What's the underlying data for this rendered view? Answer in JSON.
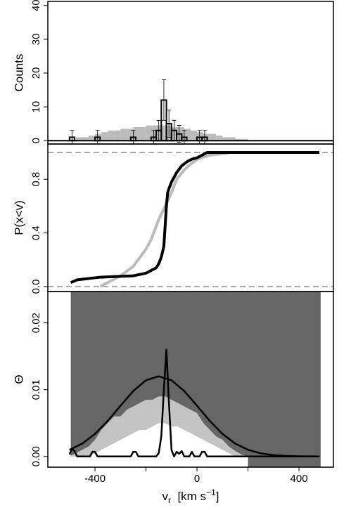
{
  "chart_data": [
    {
      "type": "histogram",
      "ylabel": "Counts",
      "xlim": [
        -585,
        535
      ],
      "ylim": [
        -1,
        41.2
      ],
      "yticks": [
        0,
        10,
        20,
        30,
        40
      ],
      "hlines": [
        0
      ],
      "hline_color": "#000000",
      "hline_dash": false,
      "series": [
        {
          "color": "#bbbbbb",
          "fill": true,
          "bins": [
            -500,
            -475,
            -450,
            -425,
            -400,
            -375,
            -350,
            -325,
            -300,
            -275,
            -250,
            -225,
            -200,
            -175,
            -150,
            -125,
            -100,
            -75,
            -50,
            -25,
            0,
            25,
            50,
            75,
            100,
            125,
            150,
            175,
            200
          ],
          "values": [
            0.5,
            1,
            1,
            1.5,
            2,
            2.5,
            3,
            3,
            3.5,
            3.5,
            4,
            4,
            4.5,
            4.5,
            4.5,
            4.5,
            4,
            4,
            3.5,
            3,
            2.5,
            2,
            2,
            1.5,
            1,
            1,
            0.5,
            0.5
          ]
        },
        {
          "color": "#000000",
          "fill": false,
          "bins": [
            -500,
            -480,
            -460,
            -440,
            -420,
            -400,
            -380,
            -360,
            -340,
            -320,
            -300,
            -280,
            -260,
            -240,
            -220,
            -200,
            -180,
            -160,
            -140,
            -120,
            -100,
            -80,
            -60,
            -40,
            -20,
            0,
            20,
            40,
            60
          ],
          "values": [
            1,
            0,
            0,
            0,
            0,
            1,
            0,
            0,
            0,
            0,
            0,
            0,
            1,
            0,
            0,
            0,
            1,
            3,
            12,
            5,
            3,
            2,
            1,
            0,
            0,
            1,
            1,
            0
          ],
          "errors": [
            2,
            null,
            null,
            null,
            null,
            2,
            null,
            null,
            null,
            null,
            null,
            null,
            2,
            null,
            null,
            null,
            2,
            3,
            6,
            4,
            3,
            2.5,
            2,
            null,
            null,
            2,
            2,
            null
          ]
        }
      ]
    },
    {
      "type": "line",
      "ylabel": "P(x<v)",
      "xlim": [
        -585,
        535
      ],
      "ylim": [
        -0.037,
        1.063
      ],
      "yticks": [
        {
          "value": 0,
          "label": "0.0"
        },
        {
          "value": 0.4,
          "label": "0.4"
        },
        {
          "value": 0.8,
          "label": "0.8"
        }
      ],
      "hlines": [
        0,
        1
      ],
      "hline_color": "#aaaaaa",
      "hline_dash": true,
      "series": [
        {
          "color": "#bbbbbb",
          "width": 4,
          "x": [
            -380,
            -350,
            -300,
            -250,
            -200,
            -180,
            -150,
            -120,
            -100,
            -80,
            -50,
            -20,
            0,
            50,
            100,
            130
          ],
          "values": [
            0,
            0.03,
            0.08,
            0.15,
            0.28,
            0.35,
            0.5,
            0.62,
            0.7,
            0.8,
            0.87,
            0.92,
            0.95,
            0.98,
            0.99,
            1
          ]
        },
        {
          "color": "#000000",
          "width": 4,
          "x": [
            -495,
            -470,
            -380,
            -250,
            -200,
            -160,
            -150,
            -140,
            -130,
            -125,
            -120,
            -115,
            -110,
            -100,
            -80,
            -60,
            -40,
            -20,
            0,
            20,
            40,
            480
          ],
          "values": [
            0.03,
            0.05,
            0.07,
            0.08,
            0.1,
            0.14,
            0.17,
            0.22,
            0.3,
            0.45,
            0.6,
            0.7,
            0.73,
            0.78,
            0.85,
            0.9,
            0.93,
            0.95,
            0.96,
            0.98,
            1,
            1
          ]
        }
      ]
    },
    {
      "type": "line",
      "ylabel": "Θ",
      "xlim": [
        -585,
        535
      ],
      "ylim": [
        -0.0016,
        0.0247
      ],
      "yticks": [
        {
          "value": 0,
          "label": "0.00"
        },
        {
          "value": 0.01,
          "label": "0.01"
        },
        {
          "value": 0.02,
          "label": "0.02"
        }
      ],
      "xticks": [
        -400,
        0,
        400
      ],
      "xticks_unlabeled": [
        -200,
        200
      ],
      "xlabel_parts": [
        "v",
        "r",
        "  [km s",
        "−1",
        "]"
      ],
      "region": {
        "xrange": [
          -495,
          485
        ],
        "color": "#666666"
      },
      "band": {
        "color": "#c4c4c4",
        "x": [
          -500,
          -475,
          -450,
          -425,
          -400,
          -375,
          -350,
          -325,
          -300,
          -275,
          -250,
          -225,
          -200,
          -175,
          -150,
          -125,
          -100,
          -75,
          -50,
          -25,
          0,
          25,
          50,
          75,
          100,
          125,
          150,
          175,
          200
        ],
        "upper": [
          0,
          0.0005,
          0.001,
          0.0015,
          0.0025,
          0.004,
          0.005,
          0.006,
          0.006,
          0.007,
          0.0075,
          0.008,
          0.0085,
          0.0085,
          0.009,
          0.009,
          0.0085,
          0.008,
          0.0075,
          0.007,
          0.0065,
          0.005,
          0.004,
          0.003,
          0.0025,
          0.0015,
          0.0008,
          0.0003,
          0
        ],
        "lower": [
          0,
          0,
          0,
          0,
          0.0005,
          0.001,
          0.0015,
          0.002,
          0.0025,
          0.003,
          0.0035,
          0.004,
          0.004,
          0.0045,
          0.005,
          0.005,
          0.0045,
          0.0045,
          0.004,
          0.0035,
          0.003,
          0.0025,
          0.002,
          0.0015,
          0.001,
          0.0005,
          0,
          0,
          0
        ]
      },
      "series": [
        {
          "color": "#000000",
          "width": 2.5,
          "x": [
            -500,
            -450,
            -400,
            -350,
            -300,
            -250,
            -200,
            -150,
            -100,
            -50,
            0,
            50,
            100,
            150,
            200,
            250,
            300,
            350,
            400,
            480
          ],
          "values": [
            0.001,
            0.00193,
            0.00338,
            0.00533,
            0.0076,
            0.0098,
            0.01141,
            0.012,
            0.01141,
            0.0098,
            0.0076,
            0.00533,
            0.00338,
            0.00193,
            0.001,
            0.00047,
            0.0002,
            8e-05,
            3e-05,
            1e-05
          ]
        },
        {
          "color": "#000000",
          "width": 2.5,
          "x": [
            -500,
            -490,
            -480,
            -470,
            -420,
            -410,
            -400,
            -390,
            -260,
            -250,
            -240,
            -230,
            -160,
            -150,
            -140,
            -130,
            -120,
            -110,
            -100,
            -90,
            -80,
            -70,
            -60,
            -50,
            -30,
            -20,
            -10,
            10,
            20,
            30,
            40,
            60,
            480
          ],
          "values": [
            0.0003,
            0.0012,
            0.0008,
            0,
            0,
            0.0007,
            0.0007,
            0,
            0,
            0.0007,
            0.0007,
            0,
            0,
            0.0005,
            0.003,
            0.01,
            0.016,
            0.008,
            0.001,
            0,
            0.0007,
            0.0004,
            0.0008,
            0,
            0,
            0.0007,
            0,
            0,
            0.0007,
            0.0007,
            0,
            0,
            0
          ]
        }
      ]
    }
  ]
}
